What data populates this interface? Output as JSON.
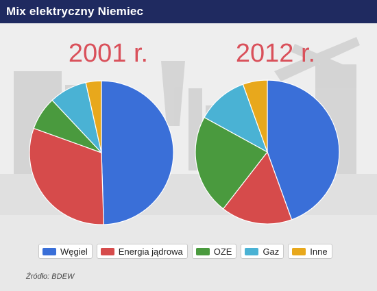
{
  "header": {
    "title": "Mix elektryczny Niemiec"
  },
  "source": "Źródło: BDEW",
  "colors": {
    "header_bg": "#1f2a60",
    "title_text": "#d9505a",
    "Węgiel": "#3a6fd8",
    "Energia jądrowa": "#d64b4b",
    "OZE": "#4a9a3e",
    "Gaz": "#4ab2d4",
    "Inne": "#e8a81c"
  },
  "chart_data": [
    {
      "type": "pie",
      "title": "2001 r.",
      "categories": [
        "Węgiel",
        "Energia jądrowa",
        "OZE",
        "Gaz",
        "Inne"
      ],
      "values": [
        49.5,
        31,
        7.5,
        8.5,
        3.5
      ],
      "unit": "%",
      "legend": "bottom"
    },
    {
      "type": "pie",
      "title": "2012 r.",
      "categories": [
        "Węgiel",
        "Energia jądrowa",
        "OZE",
        "Gaz",
        "Inne"
      ],
      "values": [
        44.5,
        16,
        22.5,
        11.5,
        5.5
      ],
      "unit": "%",
      "legend": "bottom"
    }
  ],
  "legend": [
    {
      "label": "Węgiel",
      "color": "#3a6fd8"
    },
    {
      "label": "Energia jądrowa",
      "color": "#d64b4b"
    },
    {
      "label": "OZE",
      "color": "#4a9a3e"
    },
    {
      "label": "Gaz",
      "color": "#4ab2d4"
    },
    {
      "label": "Inne",
      "color": "#e8a81c"
    }
  ]
}
